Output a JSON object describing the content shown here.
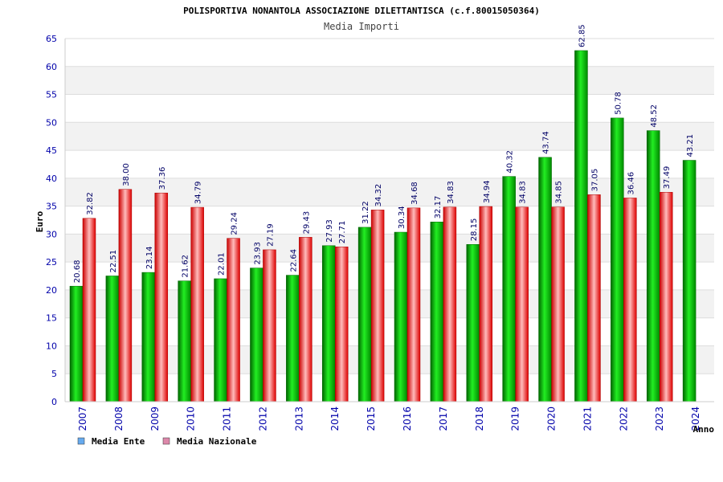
{
  "chart_data": {
    "type": "bar",
    "title": "POLISPORTIVA NONANTOLA ASSOCIAZIONE DILETTANTISCA (c.f.80015050364)",
    "subtitle": "Media Importi",
    "ylabel": "Euro",
    "xlabel": "Anno",
    "ylim": [
      0,
      65
    ],
    "ystep": 5,
    "grid": true,
    "legend_position": "bottom-left",
    "categories": [
      "2007",
      "2008",
      "2009",
      "2010",
      "2011",
      "2012",
      "2013",
      "2014",
      "2015",
      "2016",
      "2017",
      "2018",
      "2019",
      "2020",
      "2021",
      "2022",
      "2023",
      "2024"
    ],
    "series": [
      {
        "name": "Media Ente",
        "color": "#00cc00",
        "legend_color": "#66aaee",
        "values": [
          20.68,
          22.51,
          23.14,
          21.62,
          22.01,
          23.93,
          22.64,
          27.93,
          31.22,
          30.34,
          32.17,
          28.15,
          40.32,
          43.74,
          62.85,
          50.78,
          48.52,
          43.21
        ],
        "labels": [
          "20.68",
          "22.51",
          "23.14",
          "21.62",
          "22.01",
          "23.93",
          "22.64",
          "27.93",
          "31.22",
          "30.34",
          "32.17",
          "28.15",
          "40.32",
          "43.74",
          "62.85",
          "50.78",
          "48.52",
          "43.21"
        ]
      },
      {
        "name": "Media Nazionale",
        "color": "#ee2222",
        "legend_color": "#dd88aa",
        "values": [
          32.82,
          38.0,
          37.36,
          34.79,
          29.24,
          27.19,
          29.43,
          27.71,
          34.32,
          34.68,
          34.83,
          34.94,
          34.83,
          34.85,
          37.05,
          36.46,
          37.49,
          null
        ],
        "labels": [
          "32.82",
          "38.00",
          "37.36",
          "34.79",
          "29.24",
          "27.19",
          "29.43",
          "27.71",
          "34.32",
          "34.68",
          "34.83",
          "34.94",
          "34.83",
          "34.85",
          "37.05",
          "36.46",
          "37.49",
          null
        ]
      }
    ]
  }
}
